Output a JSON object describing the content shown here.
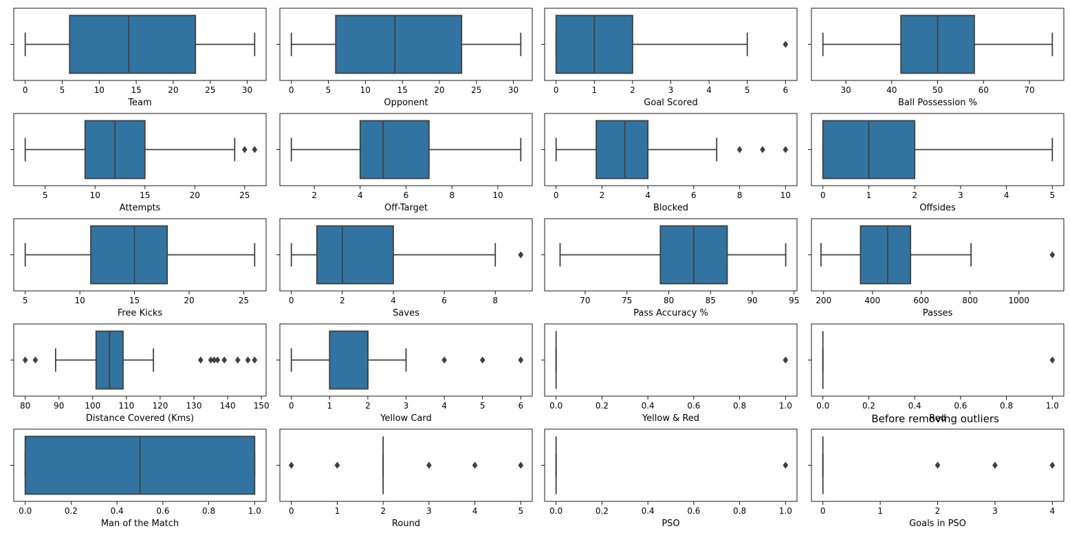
{
  "figure_title": "Before removing outliers",
  "colors": {
    "box_fill": "#3274a1",
    "line": "#3f3f3f",
    "flier": "#3f3f3f",
    "axis": "#000000"
  },
  "chart_data": [
    {
      "type": "box",
      "xlabel": "Team",
      "xlim": [
        -1.55,
        32.55
      ],
      "ticks": [
        0,
        5,
        10,
        15,
        20,
        25,
        30
      ],
      "tick_labels": [
        "0",
        "5",
        "10",
        "15",
        "20",
        "25",
        "30"
      ],
      "min": 0,
      "q1": 6,
      "median": 14,
      "q3": 23,
      "max": 31,
      "outliers": []
    },
    {
      "type": "box",
      "xlabel": "Opponent",
      "xlim": [
        -1.55,
        32.55
      ],
      "ticks": [
        0,
        5,
        10,
        15,
        20,
        25,
        30
      ],
      "tick_labels": [
        "0",
        "5",
        "10",
        "15",
        "20",
        "25",
        "30"
      ],
      "min": 0,
      "q1": 6,
      "median": 14,
      "q3": 23,
      "max": 31,
      "outliers": []
    },
    {
      "type": "box",
      "xlabel": "Goal Scored",
      "xlim": [
        -0.3,
        6.3
      ],
      "ticks": [
        0,
        1,
        2,
        3,
        4,
        5,
        6
      ],
      "tick_labels": [
        "0",
        "1",
        "2",
        "3",
        "4",
        "5",
        "6"
      ],
      "min": 0,
      "q1": 0,
      "median": 1,
      "q3": 2,
      "max": 5,
      "outliers": [
        6
      ]
    },
    {
      "type": "box",
      "xlabel": "Ball Possession %",
      "xlim": [
        22.5,
        77.5
      ],
      "ticks": [
        30,
        40,
        50,
        60,
        70
      ],
      "tick_labels": [
        "30",
        "40",
        "50",
        "60",
        "70"
      ],
      "min": 25,
      "q1": 42,
      "median": 50,
      "q3": 58,
      "max": 75,
      "outliers": []
    },
    {
      "type": "box",
      "xlabel": "Attempts",
      "xlim": [
        1.85,
        27.15
      ],
      "ticks": [
        5,
        10,
        15,
        20,
        25
      ],
      "tick_labels": [
        "5",
        "10",
        "15",
        "20",
        "25"
      ],
      "min": 3,
      "q1": 9,
      "median": 12,
      "q3": 15,
      "max": 24,
      "outliers": [
        25,
        26
      ]
    },
    {
      "type": "box",
      "xlabel": "Off-Target",
      "xlim": [
        0.5,
        11.5
      ],
      "ticks": [
        2,
        4,
        6,
        8,
        10
      ],
      "tick_labels": [
        "2",
        "4",
        "6",
        "8",
        "10"
      ],
      "min": 1,
      "q1": 4,
      "median": 5,
      "q3": 7,
      "max": 11,
      "outliers": []
    },
    {
      "type": "box",
      "xlabel": "Blocked",
      "xlim": [
        -0.5,
        10.5
      ],
      "ticks": [
        0,
        2,
        4,
        6,
        8,
        10
      ],
      "tick_labels": [
        "0",
        "2",
        "4",
        "6",
        "8",
        "10"
      ],
      "min": 0,
      "q1": 1.75,
      "median": 3,
      "q3": 4,
      "max": 7,
      "outliers": [
        8,
        9,
        10
      ]
    },
    {
      "type": "box",
      "xlabel": "Offsides",
      "xlim": [
        -0.25,
        5.25
      ],
      "ticks": [
        0,
        1,
        2,
        3,
        4,
        5
      ],
      "tick_labels": [
        "0",
        "1",
        "2",
        "3",
        "4",
        "5"
      ],
      "min": 0,
      "q1": 0,
      "median": 1,
      "q3": 2,
      "max": 5,
      "outliers": []
    },
    {
      "type": "box",
      "xlabel": "Free Kicks",
      "xlim": [
        3.95,
        27.05
      ],
      "ticks": [
        5,
        10,
        15,
        20,
        25
      ],
      "tick_labels": [
        "5",
        "10",
        "15",
        "20",
        "25"
      ],
      "min": 5,
      "q1": 11,
      "median": 15,
      "q3": 18,
      "max": 26,
      "outliers": []
    },
    {
      "type": "box",
      "xlabel": "Saves",
      "xlim": [
        -0.45,
        9.45
      ],
      "ticks": [
        0,
        2,
        4,
        6,
        8
      ],
      "tick_labels": [
        "0",
        "2",
        "4",
        "6",
        "8"
      ],
      "min": 0,
      "q1": 1,
      "median": 2,
      "q3": 4,
      "max": 8,
      "outliers": [
        9
      ]
    },
    {
      "type": "box",
      "xlabel": "Pass Accuracy %",
      "xlim": [
        65.15,
        95.35
      ],
      "ticks": [
        70,
        75,
        80,
        85,
        90,
        95
      ],
      "tick_labels": [
        "70",
        "75",
        "80",
        "85",
        "90",
        "95"
      ],
      "min": 67,
      "q1": 79,
      "median": 83,
      "q3": 87,
      "max": 94,
      "outliers": []
    },
    {
      "type": "box",
      "xlabel": "Passes",
      "xlim": [
        150,
        1184
      ],
      "ticks": [
        200,
        400,
        600,
        800,
        1000
      ],
      "tick_labels": [
        "200",
        "400",
        "600",
        "800",
        "1000"
      ],
      "min": 189,
      "q1": 351,
      "median": 462,
      "q3": 556,
      "max": 804,
      "outliers": [
        1137
      ]
    },
    {
      "type": "box",
      "xlabel": "Distance Covered (Kms)",
      "xlim": [
        76.6,
        151.4
      ],
      "ticks": [
        80,
        90,
        100,
        110,
        120,
        130,
        140,
        150
      ],
      "tick_labels": [
        "80",
        "90",
        "100",
        "110",
        "120",
        "130",
        "140",
        "150"
      ],
      "min": 89,
      "q1": 101,
      "median": 105,
      "q3": 109,
      "max": 118,
      "outliers": [
        80,
        83,
        132,
        135,
        136,
        137,
        139,
        143,
        146,
        148
      ]
    },
    {
      "type": "box",
      "xlabel": "Yellow Card",
      "xlim": [
        -0.3,
        6.3
      ],
      "ticks": [
        0,
        1,
        2,
        3,
        4,
        5,
        6
      ],
      "tick_labels": [
        "0",
        "1",
        "2",
        "3",
        "4",
        "5",
        "6"
      ],
      "min": 0,
      "q1": 1,
      "median": 2,
      "q3": 2,
      "max": 3,
      "outliers": [
        4,
        5,
        6
      ]
    },
    {
      "type": "box",
      "xlabel": "Yellow & Red",
      "xlim": [
        -0.05,
        1.05
      ],
      "ticks": [
        0,
        0.2,
        0.4,
        0.6,
        0.8,
        1.0
      ],
      "tick_labels": [
        "0.0",
        "0.2",
        "0.4",
        "0.6",
        "0.8",
        "1.0"
      ],
      "min": 0,
      "q1": 0,
      "median": 0,
      "q3": 0,
      "max": 0,
      "outliers": [
        1
      ]
    },
    {
      "type": "box",
      "xlabel": "Red",
      "xlim": [
        -0.05,
        1.05
      ],
      "ticks": [
        0,
        0.2,
        0.4,
        0.6,
        0.8,
        1.0
      ],
      "tick_labels": [
        "0.0",
        "0.2",
        "0.4",
        "0.6",
        "0.8",
        "1.0"
      ],
      "min": 0,
      "q1": 0,
      "median": 0,
      "q3": 0,
      "max": 0,
      "outliers": [
        1
      ]
    },
    {
      "type": "box",
      "xlabel": "Man of the Match",
      "xlim": [
        -0.05,
        1.05
      ],
      "ticks": [
        0,
        0.2,
        0.4,
        0.6,
        0.8,
        1.0
      ],
      "tick_labels": [
        "0.0",
        "0.2",
        "0.4",
        "0.6",
        "0.8",
        "1.0"
      ],
      "min": 0,
      "q1": 0,
      "median": 0.5,
      "q3": 1,
      "max": 1,
      "outliers": []
    },
    {
      "type": "box",
      "xlabel": "Round",
      "xlim": [
        -0.25,
        5.25
      ],
      "ticks": [
        0,
        1,
        2,
        3,
        4,
        5
      ],
      "tick_labels": [
        "0",
        "1",
        "2",
        "3",
        "4",
        "5"
      ],
      "min": 2,
      "q1": 2,
      "median": 2,
      "q3": 2,
      "max": 2,
      "outliers": [
        0,
        1,
        3,
        4,
        5
      ]
    },
    {
      "type": "box",
      "xlabel": "PSO",
      "xlim": [
        -0.05,
        1.05
      ],
      "ticks": [
        0,
        0.2,
        0.4,
        0.6,
        0.8,
        1.0
      ],
      "tick_labels": [
        "0.0",
        "0.2",
        "0.4",
        "0.6",
        "0.8",
        "1.0"
      ],
      "min": 0,
      "q1": 0,
      "median": 0,
      "q3": 0,
      "max": 0,
      "outliers": [
        1
      ]
    },
    {
      "type": "box",
      "xlabel": "Goals in PSO",
      "xlim": [
        -0.2,
        4.2
      ],
      "ticks": [
        0,
        1,
        2,
        3,
        4
      ],
      "tick_labels": [
        "0",
        "1",
        "2",
        "3",
        "4"
      ],
      "min": 0,
      "q1": 0,
      "median": 0,
      "q3": 0,
      "max": 0,
      "outliers": [
        2,
        3,
        4
      ]
    }
  ]
}
